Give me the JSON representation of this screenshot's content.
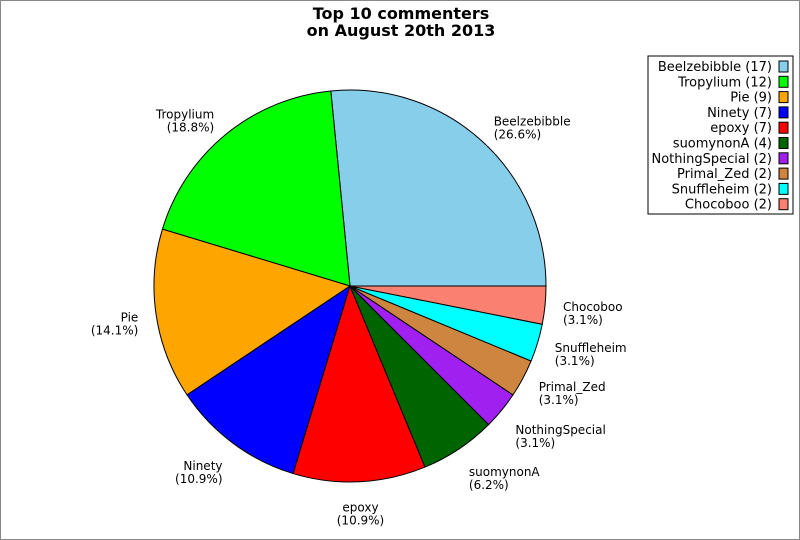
{
  "chart_data": {
    "type": "pie",
    "title": [
      "Top 10 commenters",
      "on August 20th 2013"
    ],
    "start_angle_deg": 0,
    "direction": "counterclockwise",
    "slices": [
      {
        "name": "Beelzebibble",
        "value": 17,
        "percent": "(26.6%)",
        "legend": "Beelzebibble (17)",
        "color": "#87CEEB"
      },
      {
        "name": "Tropylium",
        "value": 12,
        "percent": "(18.8%)",
        "legend": "Tropylium (12)",
        "color": "#00FF00"
      },
      {
        "name": "Pie",
        "value": 9,
        "percent": "(14.1%)",
        "legend": "Pie (9)",
        "color": "#FFA500"
      },
      {
        "name": "Ninety",
        "value": 7,
        "percent": "(10.9%)",
        "legend": "Ninety (7)",
        "color": "#0000FF"
      },
      {
        "name": "epoxy",
        "value": 7,
        "percent": "(10.9%)",
        "legend": "epoxy (7)",
        "color": "#FF0000"
      },
      {
        "name": "suomynonA",
        "value": 4,
        "percent": "(6.2%)",
        "legend": "suomynonA (4)",
        "color": "#006400"
      },
      {
        "name": "NothingSpecial",
        "value": 2,
        "percent": "(3.1%)",
        "legend": "NothingSpecial (2)",
        "color": "#A020F0"
      },
      {
        "name": "Primal_Zed",
        "value": 2,
        "percent": "(3.1%)",
        "legend": "Primal_Zed (2)",
        "color": "#CD853F"
      },
      {
        "name": "Snuffleheim",
        "value": 2,
        "percent": "(3.1%)",
        "legend": "Snuffleheim (2)",
        "color": "#00FFFF"
      },
      {
        "name": "Chocoboo",
        "value": 2,
        "percent": "(3.1%)",
        "legend": "Chocoboo (2)",
        "color": "#FA8072"
      }
    ],
    "legend_position": "top-right"
  }
}
